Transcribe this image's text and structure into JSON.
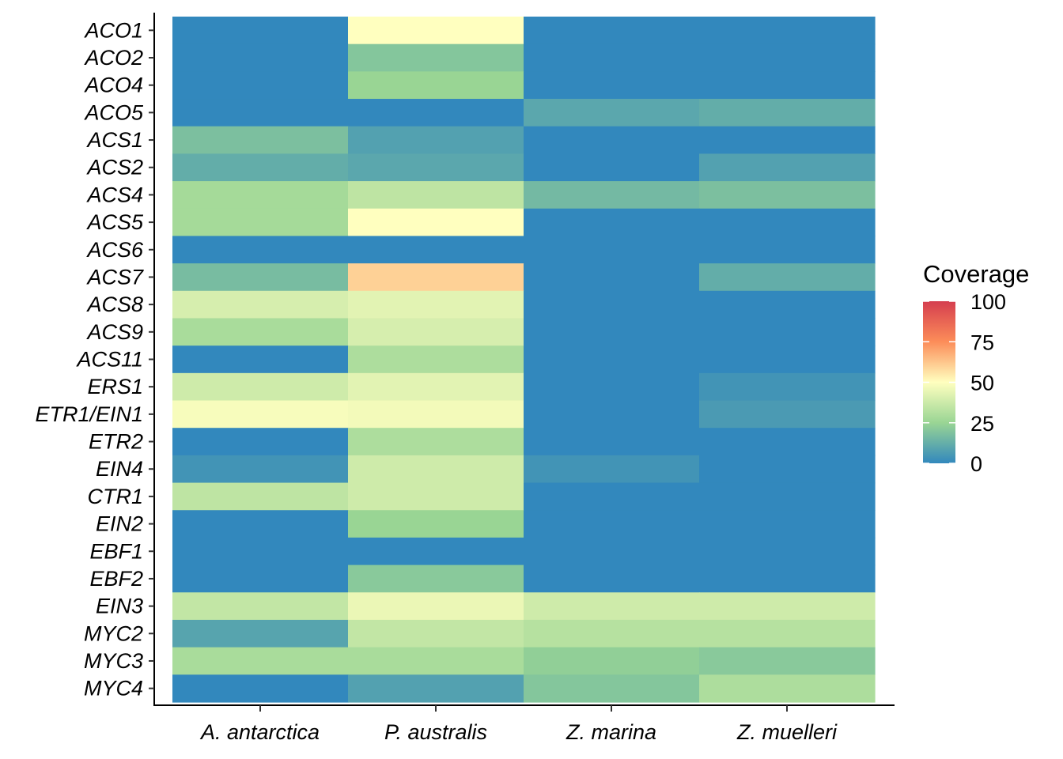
{
  "chart_data": {
    "type": "heatmap",
    "title": "",
    "xlabel": "",
    "ylabel": "",
    "x_categories": [
      "A. antarctica",
      "P. australis",
      "Z. marina",
      "Z. muelleri"
    ],
    "y_categories": [
      "ACO1",
      "ACO2",
      "ACO4",
      "ACO5",
      "ACS1",
      "ACS2",
      "ACS4",
      "ACS5",
      "ACS6",
      "ACS7",
      "ACS8",
      "ACS9",
      "ACS11",
      "ERS1",
      "ETR1/EIN1",
      "ETR2",
      "EIN4",
      "CTR1",
      "EIN2",
      "EBF1",
      "EBF2",
      "EIN3",
      "MYC2",
      "MYC3",
      "MYC4"
    ],
    "values": [
      [
        0,
        50,
        0,
        0
      ],
      [
        0,
        20,
        0,
        0
      ],
      [
        0,
        25,
        0,
        0
      ],
      [
        0,
        0,
        10,
        12
      ],
      [
        18,
        8,
        0,
        0
      ],
      [
        12,
        10,
        0,
        8
      ],
      [
        28,
        34,
        16,
        18
      ],
      [
        28,
        50,
        0,
        0
      ],
      [
        0,
        0,
        0,
        0
      ],
      [
        17,
        60,
        0,
        12
      ],
      [
        40,
        43,
        0,
        0
      ],
      [
        29,
        40,
        0,
        0
      ],
      [
        0,
        30,
        0,
        0
      ],
      [
        38,
        43,
        0,
        4
      ],
      [
        48,
        47,
        0,
        6
      ],
      [
        0,
        30,
        0,
        0
      ],
      [
        4,
        38,
        4,
        0
      ],
      [
        34,
        38,
        0,
        0
      ],
      [
        0,
        25,
        0,
        0
      ],
      [
        0,
        0,
        0,
        0
      ],
      [
        0,
        21,
        0,
        0
      ],
      [
        35,
        45,
        38,
        38
      ],
      [
        9,
        35,
        32,
        32
      ],
      [
        29,
        29,
        23,
        21
      ],
      [
        0,
        8,
        20,
        30
      ]
    ],
    "legend": {
      "title": "Coverage",
      "min": 0,
      "max": 100,
      "ticks": [
        0,
        25,
        50,
        75,
        100
      ],
      "position": "right",
      "palette": [
        "#3288bd",
        "#99d594",
        "#ffffbf",
        "#fc8d59",
        "#d53e4f"
      ]
    },
    "grid": false
  }
}
